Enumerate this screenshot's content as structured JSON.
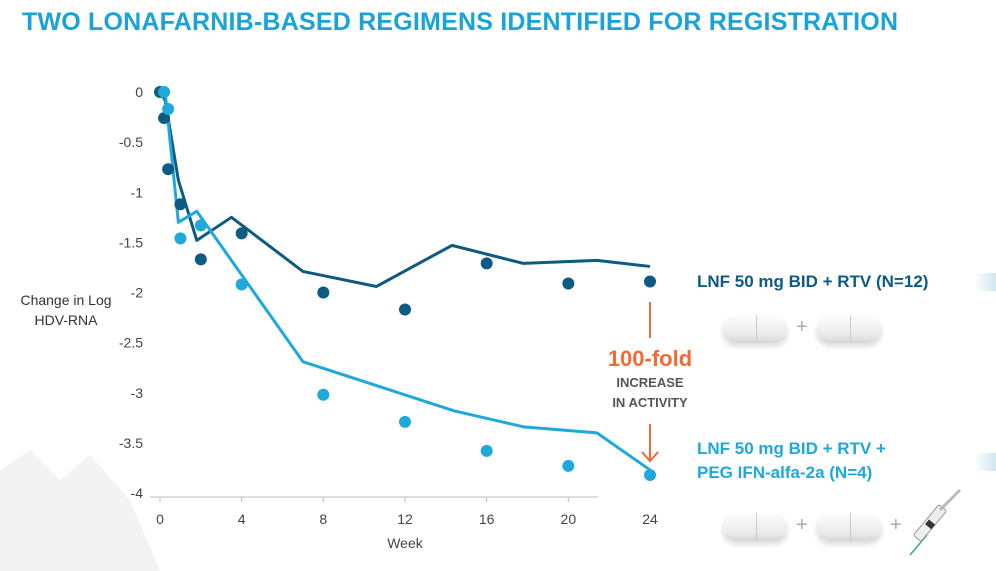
{
  "title": "TWO LONAFARNIB-BASED REGIMENS IDENTIFIED FOR REGISTRATION",
  "colors": {
    "title": "#1aa3d8",
    "series_dark": "#0d5a82",
    "series_light": "#1ea8dc",
    "annotation": "#f26a36"
  },
  "chart_data": {
    "type": "line",
    "xlabel": "Week",
    "ylabel": "Change in Log HDV-RNA",
    "xlim": [
      0,
      24
    ],
    "ylim": [
      -4,
      0
    ],
    "xticks": [
      0,
      4,
      8,
      12,
      16,
      20,
      24
    ],
    "yticks": [
      0,
      -0.5,
      -1,
      -1.5,
      -2,
      -2.5,
      -3,
      -3.5,
      -4
    ],
    "ytick_labels": [
      "0",
      "-0.5",
      "-1",
      "-1.5",
      "-2",
      "-2.5",
      "-3",
      "-3.5",
      "-4"
    ],
    "grid": false,
    "series": [
      {
        "name": "LNF 50 mg BID + RTV (N=12)",
        "color": "#0d5a82",
        "points": [
          [
            0,
            0
          ],
          [
            0.2,
            -0.26
          ],
          [
            0.4,
            -0.77
          ],
          [
            1,
            -1.12
          ],
          [
            2,
            -1.67
          ],
          [
            4,
            -1.41
          ],
          [
            8,
            -2.0
          ],
          [
            12,
            -2.17
          ],
          [
            16,
            -1.71
          ],
          [
            20,
            -1.91
          ],
          [
            24,
            -1.89
          ]
        ],
        "line": [
          [
            0,
            0
          ],
          [
            0.25,
            -0.08
          ],
          [
            0.9,
            -0.88
          ],
          [
            1.8,
            -1.48
          ],
          [
            3.5,
            -1.25
          ],
          [
            7,
            -1.79
          ],
          [
            10.6,
            -1.94
          ],
          [
            14.3,
            -1.53
          ],
          [
            17.8,
            -1.71
          ],
          [
            21.4,
            -1.68
          ],
          [
            24,
            -1.74
          ]
        ]
      },
      {
        "name": "LNF 50 mg BID + RTV + PEG IFN-alfa-2a (N=4)",
        "color": "#1ea8dc",
        "points": [
          [
            0.2,
            0
          ],
          [
            0.4,
            -0.17
          ],
          [
            1,
            -1.46
          ],
          [
            2,
            -1.33
          ],
          [
            4,
            -1.92
          ],
          [
            8,
            -3.02
          ],
          [
            12,
            -3.29
          ],
          [
            16,
            -3.58
          ],
          [
            20,
            -3.73
          ],
          [
            24,
            -3.82
          ]
        ],
        "line": [
          [
            0.25,
            0
          ],
          [
            0.9,
            -1.3
          ],
          [
            1.8,
            -1.19
          ],
          [
            7,
            -2.69
          ],
          [
            14.4,
            -3.18
          ],
          [
            17.8,
            -3.34
          ],
          [
            21.4,
            -3.4
          ],
          [
            24,
            -3.77
          ]
        ]
      }
    ],
    "annotation": {
      "big": "100-fold",
      "line1": "INCREASE",
      "line2": "IN ACTIVITY"
    },
    "legend": {
      "line1": "LNF 50 mg BID + RTV (N=12)",
      "line2a": "LNF 50 mg BID + RTV +",
      "line2b": "PEG IFN-alfa-2a (N=4)"
    }
  },
  "plus": "+"
}
